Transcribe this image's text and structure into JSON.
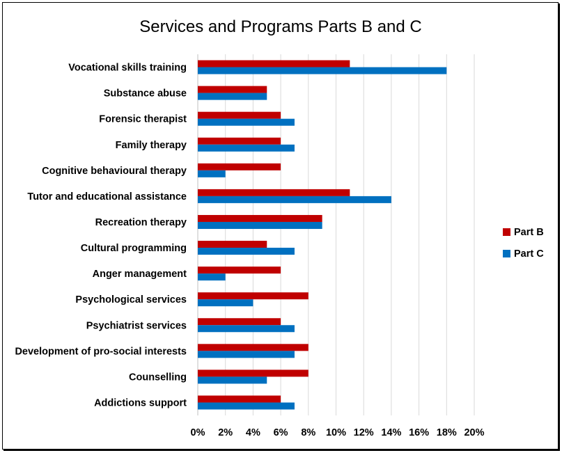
{
  "chart_data": {
    "type": "bar",
    "orientation": "horizontal",
    "title": "Services and Programs Parts B and C",
    "xlabel": "",
    "ylabel": "",
    "xlim": [
      0,
      20
    ],
    "x_ticks": [
      "0%",
      "2%",
      "4%",
      "6%",
      "8%",
      "10%",
      "12%",
      "14%",
      "16%",
      "18%",
      "20%"
    ],
    "grid": "vertical",
    "legend_position": "right",
    "categories": [
      "Vocational skills training",
      "Substance abuse",
      "Forensic therapist",
      "Family therapy",
      "Cognitive behavioural therapy",
      "Tutor and educational assistance",
      "Recreation therapy",
      "Cultural programming",
      "Anger management",
      "Psychological services",
      "Psychiatrist services",
      "Development of pro-social interests",
      "Counselling",
      "Addictions support"
    ],
    "series": [
      {
        "name": "Part B",
        "color": "#c00000",
        "values": [
          11,
          5,
          6,
          6,
          6,
          11,
          9,
          5,
          6,
          8,
          6,
          8,
          8,
          6
        ]
      },
      {
        "name": "Part C",
        "color": "#0070c0",
        "values": [
          18,
          5,
          7,
          7,
          2,
          14,
          9,
          7,
          2,
          4,
          7,
          7,
          5,
          7
        ]
      }
    ]
  }
}
